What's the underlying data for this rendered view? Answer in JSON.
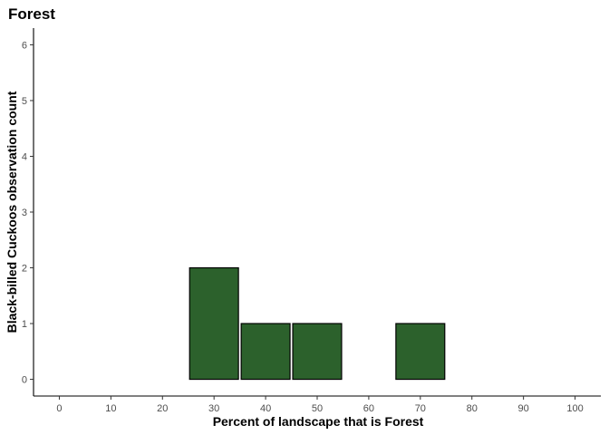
{
  "chart_data": {
    "type": "bar",
    "title": "Forest",
    "xlabel": "Percent of landscape that is Forest",
    "ylabel": "Black-billed Cuckoos observation count",
    "x_ticks": [
      0,
      10,
      20,
      30,
      40,
      50,
      60,
      70,
      80,
      90,
      100
    ],
    "y_ticks": [
      0,
      1,
      2,
      3,
      4,
      5,
      6
    ],
    "xlim": [
      -5,
      105
    ],
    "ylim": [
      -0.3,
      6.3
    ],
    "bin_width": 10,
    "bins": [
      {
        "x": 30,
        "count": 2
      },
      {
        "x": 40,
        "count": 1
      },
      {
        "x": 50,
        "count": 1
      },
      {
        "x": 70,
        "count": 1
      }
    ],
    "bar_color": "#2c612c",
    "bar_outline": "#000000",
    "grid": false
  }
}
